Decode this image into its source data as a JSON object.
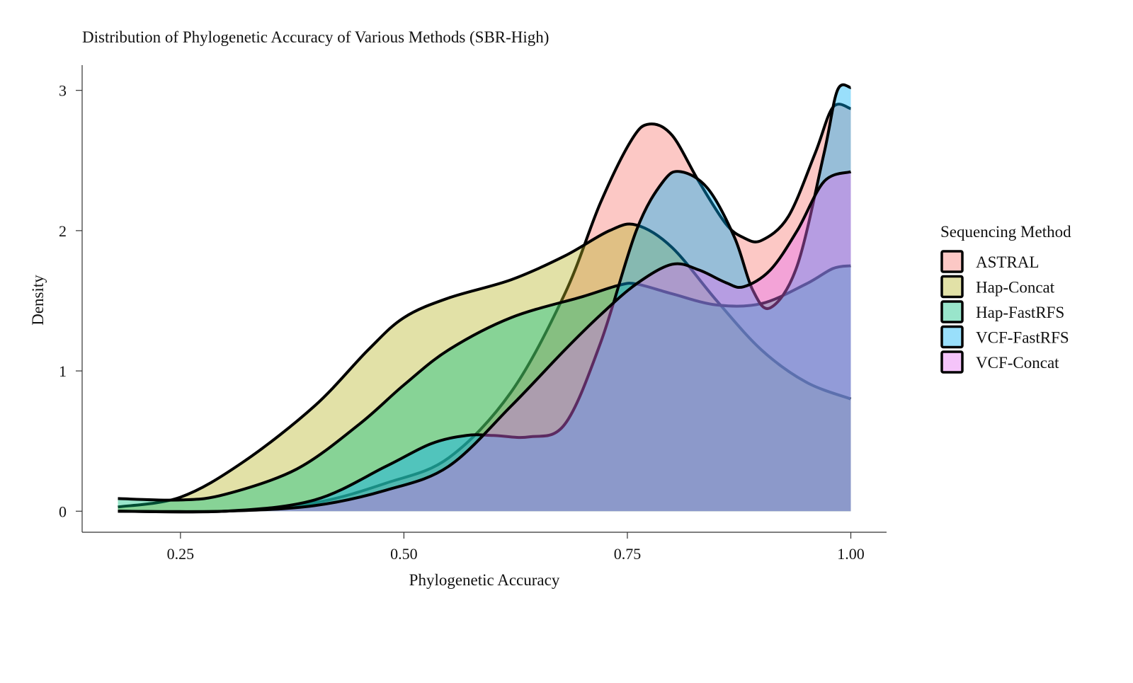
{
  "chart_data": {
    "type": "area",
    "title": "Distribution of Phylogenetic Accuracy of Various Methods (SBR-High)",
    "xlabel": "Phylogenetic Accuracy",
    "ylabel": "Density",
    "xlim": [
      0.14,
      1.04
    ],
    "ylim": [
      -0.15,
      3.18
    ],
    "x_ticks": [
      {
        "value": 0.25,
        "label": "0.25"
      },
      {
        "value": 0.5,
        "label": "0.50"
      },
      {
        "value": 0.75,
        "label": "0.75"
      },
      {
        "value": 1.0,
        "label": "1.00"
      }
    ],
    "y_ticks": [
      {
        "value": 0,
        "label": "0"
      },
      {
        "value": 1,
        "label": "1"
      },
      {
        "value": 2,
        "label": "2"
      },
      {
        "value": 3,
        "label": "3"
      }
    ],
    "grid": false,
    "legend": {
      "title": "Sequencing Method",
      "position": "right",
      "entries": [
        {
          "name": "ASTRAL",
          "color": "#f8766d"
        },
        {
          "name": "Hap-Concat",
          "color": "#b7b324"
        },
        {
          "name": "Hap-FastRFS",
          "color": "#00bf7d"
        },
        {
          "name": "VCF-FastRFS",
          "color": "#00b0f6"
        },
        {
          "name": "VCF-Concat",
          "color": "#e76bf3"
        }
      ]
    },
    "fill_opacity": 0.4,
    "series": [
      {
        "name": "ASTRAL",
        "color": "#f8766d",
        "points": [
          [
            0.18,
            0
          ],
          [
            0.3,
            0
          ],
          [
            0.4,
            0.06
          ],
          [
            0.48,
            0.2
          ],
          [
            0.55,
            0.38
          ],
          [
            0.62,
            0.85
          ],
          [
            0.68,
            1.55
          ],
          [
            0.72,
            2.2
          ],
          [
            0.755,
            2.65
          ],
          [
            0.775,
            2.76
          ],
          [
            0.8,
            2.68
          ],
          [
            0.83,
            2.35
          ],
          [
            0.86,
            2.05
          ],
          [
            0.88,
            1.95
          ],
          [
            0.9,
            1.93
          ],
          [
            0.93,
            2.1
          ],
          [
            0.96,
            2.55
          ],
          [
            0.98,
            2.88
          ],
          [
            1.0,
            2.87
          ]
        ]
      },
      {
        "name": "Hap-Concat",
        "color": "#b7b324",
        "points": [
          [
            0.18,
            0.03
          ],
          [
            0.25,
            0.1
          ],
          [
            0.32,
            0.35
          ],
          [
            0.4,
            0.75
          ],
          [
            0.46,
            1.15
          ],
          [
            0.5,
            1.38
          ],
          [
            0.55,
            1.52
          ],
          [
            0.62,
            1.65
          ],
          [
            0.68,
            1.82
          ],
          [
            0.73,
            2.0
          ],
          [
            0.76,
            2.04
          ],
          [
            0.8,
            1.88
          ],
          [
            0.85,
            1.5
          ],
          [
            0.9,
            1.15
          ],
          [
            0.95,
            0.92
          ],
          [
            1.0,
            0.8
          ]
        ]
      },
      {
        "name": "Hap-FastRFS",
        "color": "#00bf7d",
        "points": [
          [
            0.18,
            0.09
          ],
          [
            0.25,
            0.08
          ],
          [
            0.3,
            0.12
          ],
          [
            0.38,
            0.3
          ],
          [
            0.45,
            0.62
          ],
          [
            0.5,
            0.9
          ],
          [
            0.55,
            1.15
          ],
          [
            0.62,
            1.38
          ],
          [
            0.7,
            1.53
          ],
          [
            0.74,
            1.61
          ],
          [
            0.76,
            1.62
          ],
          [
            0.8,
            1.55
          ],
          [
            0.85,
            1.47
          ],
          [
            0.9,
            1.48
          ],
          [
            0.95,
            1.62
          ],
          [
            0.98,
            1.73
          ],
          [
            1.0,
            1.75
          ]
        ]
      },
      {
        "name": "VCF-FastRFS",
        "color": "#00b0f6",
        "points": [
          [
            0.18,
            0
          ],
          [
            0.3,
            0
          ],
          [
            0.4,
            0.08
          ],
          [
            0.48,
            0.32
          ],
          [
            0.53,
            0.48
          ],
          [
            0.57,
            0.54
          ],
          [
            0.6,
            0.54
          ],
          [
            0.64,
            0.53
          ],
          [
            0.68,
            0.62
          ],
          [
            0.72,
            1.2
          ],
          [
            0.76,
            2.0
          ],
          [
            0.79,
            2.35
          ],
          [
            0.81,
            2.42
          ],
          [
            0.84,
            2.3
          ],
          [
            0.87,
            1.95
          ],
          [
            0.89,
            1.58
          ],
          [
            0.91,
            1.45
          ],
          [
            0.94,
            1.75
          ],
          [
            0.97,
            2.55
          ],
          [
            0.985,
            3.0
          ],
          [
            1.0,
            3.02
          ]
        ]
      },
      {
        "name": "VCF-Concat",
        "color": "#e76bf3",
        "points": [
          [
            0.18,
            0
          ],
          [
            0.3,
            0
          ],
          [
            0.4,
            0.04
          ],
          [
            0.48,
            0.15
          ],
          [
            0.55,
            0.32
          ],
          [
            0.62,
            0.75
          ],
          [
            0.68,
            1.15
          ],
          [
            0.72,
            1.4
          ],
          [
            0.76,
            1.62
          ],
          [
            0.8,
            1.76
          ],
          [
            0.83,
            1.72
          ],
          [
            0.86,
            1.63
          ],
          [
            0.88,
            1.6
          ],
          [
            0.91,
            1.72
          ],
          [
            0.94,
            2.0
          ],
          [
            0.97,
            2.35
          ],
          [
            1.0,
            2.42
          ]
        ]
      }
    ]
  }
}
